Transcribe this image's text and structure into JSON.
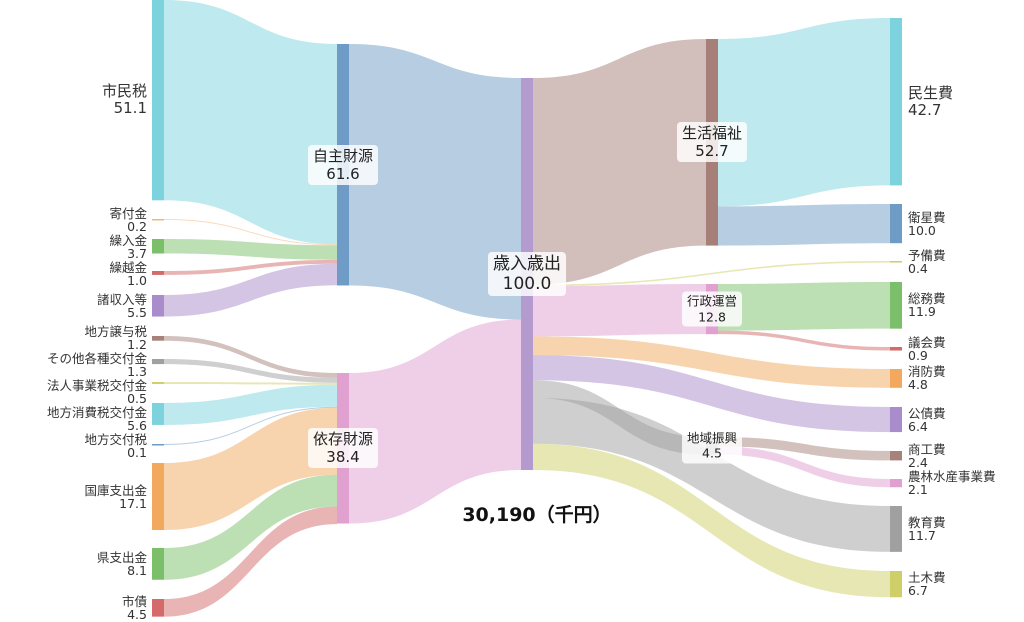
{
  "total_label": "30,190（千円）",
  "nodes": [
    {
      "name": "市民税",
      "value": "51.1",
      "v": 51.1,
      "color": "#7dd3dd"
    },
    {
      "name": "寄付金",
      "value": "0.2",
      "v": 0.2,
      "color": "#f5b57a"
    },
    {
      "name": "繰入金",
      "value": "3.7",
      "v": 3.7,
      "color": "#7bbf6a"
    },
    {
      "name": "繰越金",
      "value": "1.0",
      "v": 1.0,
      "color": "#d46a6a"
    },
    {
      "name": "諸収入等",
      "value": "5.5",
      "v": 5.5,
      "color": "#a98ccc"
    },
    {
      "name": "地方譲与税",
      "value": "1.2",
      "v": 1.2,
      "color": "#a5837a"
    },
    {
      "name": "その他各種交付金",
      "value": "1.3",
      "v": 1.3,
      "color": "#a0a0a0"
    },
    {
      "name": "法人事業税交付金",
      "value": "0.5",
      "v": 0.5,
      "color": "#cfcf6a"
    },
    {
      "name": "地方消費税交付金",
      "value": "5.6",
      "v": 5.6,
      "color": "#7dd3dd"
    },
    {
      "name": "地方交付税",
      "value": "0.1",
      "v": 0.1,
      "color": "#6f9cc6"
    },
    {
      "name": "国庫支出金",
      "value": "17.1",
      "v": 17.1,
      "color": "#f2a95e"
    },
    {
      "name": "県支出金",
      "value": "8.1",
      "v": 8.1,
      "color": "#7bbf6a"
    },
    {
      "name": "市債",
      "value": "4.5",
      "v": 4.5,
      "color": "#d46a6a"
    },
    {
      "name": "自主財源",
      "value": "61.6",
      "v": 61.6,
      "color": "#6f9cc6"
    },
    {
      "name": "依存財源",
      "value": "38.4",
      "v": 38.4,
      "color": "#e0a0d0"
    },
    {
      "name": "歳入歳出",
      "value": "100.0",
      "v": 100.0,
      "color": "#b39bd0"
    },
    {
      "name": "生活福祉",
      "value": "52.7",
      "v": 52.7,
      "color": "#a57f78"
    },
    {
      "name": "行政運営",
      "value": "12.8",
      "v": 12.8,
      "color": "#e0a0d0"
    },
    {
      "name": "地域振興",
      "value": "4.5",
      "v": 4.5,
      "color": "#a0a0a0"
    },
    {
      "name": "民生費",
      "value": "42.7",
      "v": 42.7,
      "color": "#7dd3dd"
    },
    {
      "name": "衛星費",
      "value": "10.0",
      "v": 10.0,
      "color": "#6f9cc6"
    },
    {
      "name": "予備費",
      "value": "0.4",
      "v": 0.4,
      "color": "#cfcf6a"
    },
    {
      "name": "総務費",
      "value": "11.9",
      "v": 11.9,
      "color": "#7bbf6a"
    },
    {
      "name": "議会費",
      "value": "0.9",
      "v": 0.9,
      "color": "#d46a6a"
    },
    {
      "name": "消防費",
      "value": "4.8",
      "v": 4.8,
      "color": "#f2a95e"
    },
    {
      "name": "公債費",
      "value": "6.4",
      "v": 6.4,
      "color": "#a98ccc"
    },
    {
      "name": "商工費",
      "value": "2.4",
      "v": 2.4,
      "color": "#a5837a"
    },
    {
      "name": "農林水産事業費",
      "value": "2.1",
      "v": 2.1,
      "color": "#e0a0d0"
    },
    {
      "name": "教育費",
      "value": "11.7",
      "v": 11.7,
      "color": "#a0a0a0"
    },
    {
      "name": "土木費",
      "value": "6.7",
      "v": 6.7,
      "color": "#cfcf6a"
    }
  ],
  "links": [
    [
      0,
      13,
      51.1
    ],
    [
      1,
      13,
      0.2
    ],
    [
      2,
      13,
      3.7
    ],
    [
      3,
      13,
      1.0
    ],
    [
      4,
      13,
      5.5
    ],
    [
      5,
      14,
      1.2
    ],
    [
      6,
      14,
      1.3
    ],
    [
      7,
      14,
      0.5
    ],
    [
      8,
      14,
      5.6
    ],
    [
      9,
      14,
      0.1
    ],
    [
      10,
      14,
      17.1
    ],
    [
      11,
      14,
      8.1
    ],
    [
      12,
      14,
      4.5
    ],
    [
      13,
      15,
      61.6
    ],
    [
      14,
      15,
      38.4
    ],
    [
      15,
      16,
      52.7
    ],
    [
      15,
      21,
      0.4
    ],
    [
      15,
      17,
      12.8
    ],
    [
      15,
      24,
      4.8
    ],
    [
      15,
      25,
      6.4
    ],
    [
      15,
      18,
      4.5
    ],
    [
      15,
      28,
      11.7
    ],
    [
      15,
      29,
      6.7
    ],
    [
      16,
      19,
      42.7
    ],
    [
      16,
      20,
      10.0
    ],
    [
      17,
      22,
      11.9
    ],
    [
      17,
      23,
      0.9
    ],
    [
      18,
      26,
      2.4
    ],
    [
      18,
      27,
      2.1
    ]
  ]
}
